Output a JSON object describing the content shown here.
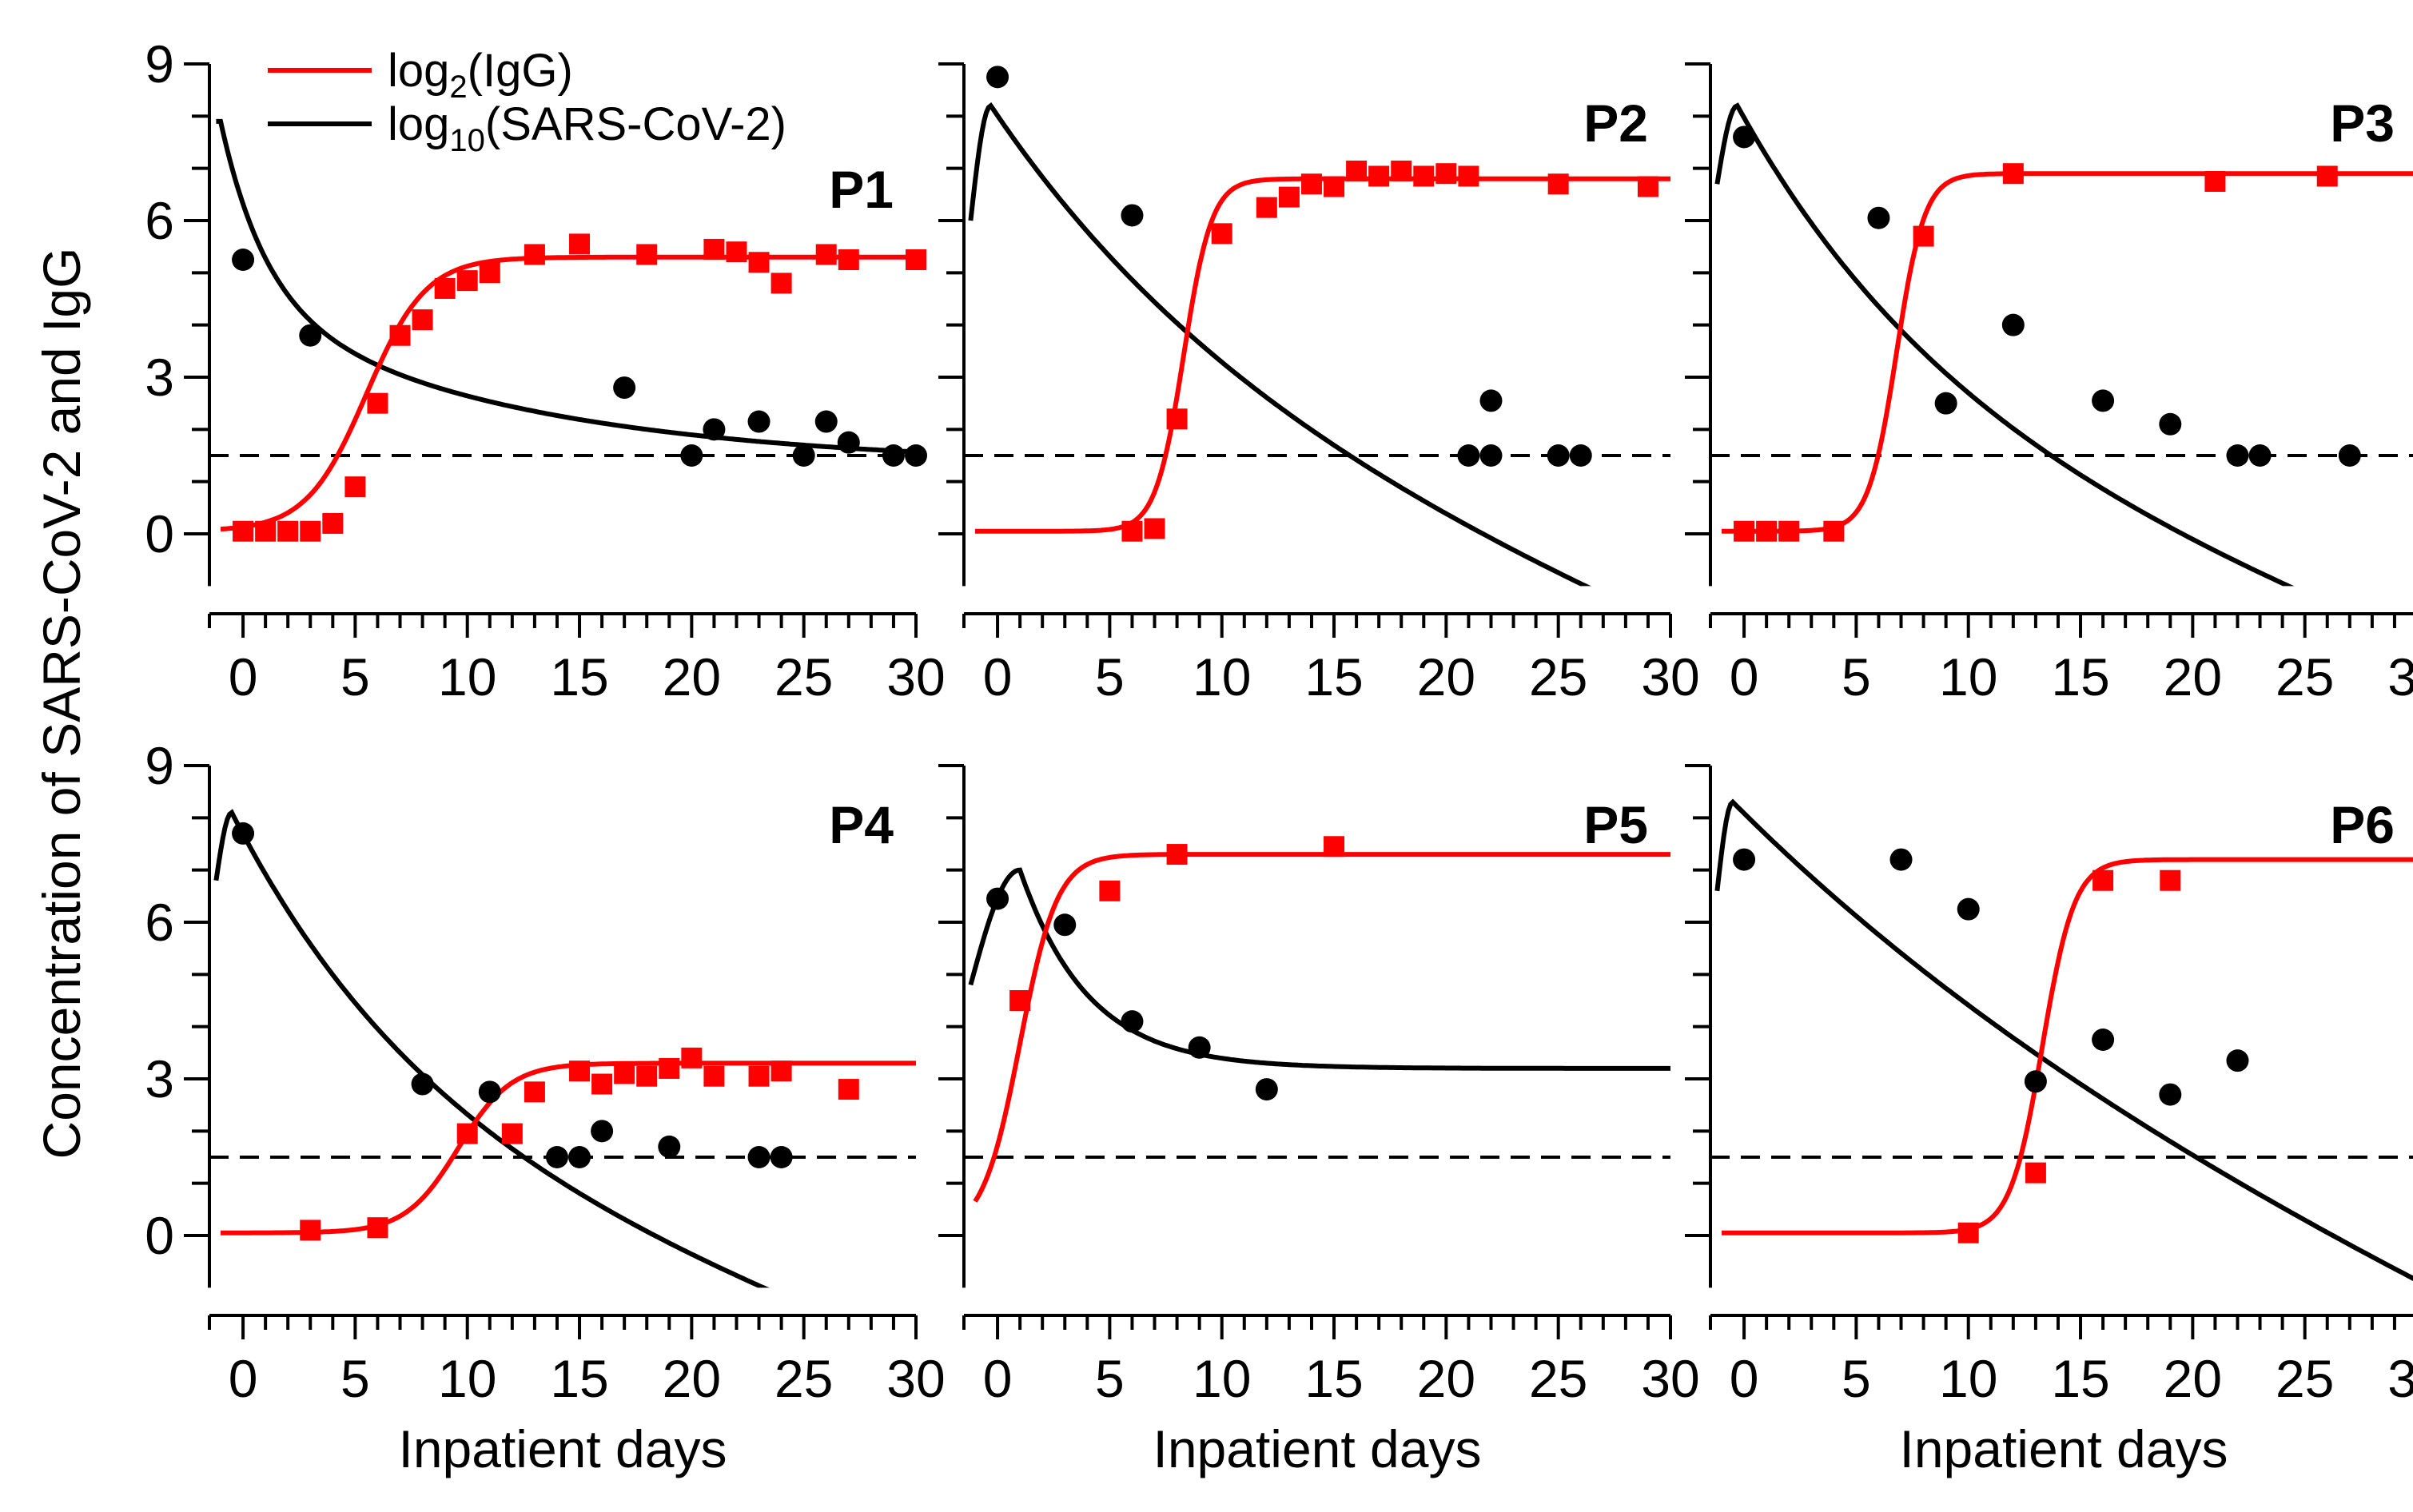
{
  "figure": {
    "ylabel": "Concentration of SARS-CoV-2 and IgG",
    "xlabel": "Inpatient days",
    "legend": [
      {
        "label_base": "log",
        "label_sub": "2",
        "label_rest": "(IgG)",
        "color": "#ff0000"
      },
      {
        "label_base": "log",
        "label_sub": "10",
        "label_rest": "(SARS-CoV-2)",
        "color": "#000000"
      }
    ]
  },
  "chart_data": {
    "type": "line",
    "x_ticks": [
      0,
      5,
      10,
      15,
      20,
      25,
      30
    ],
    "y_ticks": [
      0,
      3,
      6,
      9
    ],
    "xlim": [
      -1,
      30
    ],
    "ylim": [
      -1,
      9
    ],
    "threshold": 1.5,
    "colors": {
      "igg": "#ff0000",
      "virus": "#000000"
    },
    "panels": [
      {
        "label": "P1",
        "virus_model": {
          "peak_day": -1,
          "peak": 7.9,
          "decay": [
            3.4,
            0.5,
            3.2,
            0.08
          ],
          "rise_start": 7.9,
          "end": 1.3
        },
        "igg_model": {
          "base": 0.05,
          "max": 5.3,
          "mid": 5.5,
          "k": 0.75
        },
        "virus_points": [
          [
            0,
            5.25
          ],
          [
            3,
            3.8
          ],
          [
            17,
            2.8
          ],
          [
            20,
            1.5
          ],
          [
            21,
            2.0
          ],
          [
            23,
            2.15
          ],
          [
            25,
            1.5
          ],
          [
            26,
            2.15
          ],
          [
            27,
            1.75
          ],
          [
            29,
            1.5
          ],
          [
            30,
            1.5
          ]
        ],
        "igg_points": [
          [
            0,
            0.05
          ],
          [
            1,
            0.05
          ],
          [
            2,
            0.05
          ],
          [
            3,
            0.05
          ],
          [
            4,
            0.2
          ],
          [
            5,
            0.9
          ],
          [
            6,
            2.5
          ],
          [
            7,
            3.8
          ],
          [
            8,
            4.1
          ],
          [
            9,
            4.7
          ],
          [
            10,
            4.85
          ],
          [
            11,
            5.0
          ],
          [
            13,
            5.35
          ],
          [
            15,
            5.55
          ],
          [
            18,
            5.35
          ],
          [
            21,
            5.45
          ],
          [
            22,
            5.4
          ],
          [
            23,
            5.2
          ],
          [
            24,
            4.8
          ],
          [
            26,
            5.35
          ],
          [
            27,
            5.25
          ],
          [
            30,
            5.25
          ]
        ]
      },
      {
        "label": "P2",
        "virus_model": {
          "peak_day": -0.3,
          "peak": 8.2,
          "rise_start": 6.0,
          "exp_end_rate": 0.078
        },
        "igg_model": {
          "base": 0.05,
          "max": 6.8,
          "mid": 8.3,
          "k": 1.6
        },
        "virus_points": [
          [
            0,
            8.75
          ],
          [
            6,
            6.1
          ],
          [
            21,
            1.5
          ],
          [
            22,
            1.5
          ],
          [
            22,
            2.55
          ],
          [
            25,
            1.5
          ],
          [
            26,
            1.5
          ]
        ],
        "igg_points": [
          [
            6,
            0.05
          ],
          [
            7,
            0.1
          ],
          [
            8,
            2.2
          ],
          [
            10,
            5.75
          ],
          [
            12,
            6.25
          ],
          [
            13,
            6.45
          ],
          [
            14,
            6.7
          ],
          [
            15,
            6.65
          ],
          [
            16,
            6.95
          ],
          [
            17,
            6.85
          ],
          [
            18,
            6.95
          ],
          [
            19,
            6.85
          ],
          [
            20,
            6.9
          ],
          [
            21,
            6.85
          ],
          [
            25,
            6.7
          ],
          [
            29,
            6.65
          ]
        ]
      },
      {
        "label": "P3",
        "virus_model": {
          "peak_day": -0.3,
          "peak": 8.2,
          "rise_start": 6.7,
          "exp_end_rate": 0.095
        },
        "igg_model": {
          "base": 0.05,
          "max": 6.9,
          "mid": 6.8,
          "k": 1.6
        },
        "virus_points": [
          [
            0,
            7.6
          ],
          [
            6,
            6.05
          ],
          [
            9,
            2.5
          ],
          [
            12,
            4.0
          ],
          [
            16,
            2.55
          ],
          [
            19,
            2.1
          ],
          [
            22,
            1.5
          ],
          [
            23,
            1.5
          ],
          [
            27,
            1.5
          ]
        ],
        "igg_points": [
          [
            0,
            0.05
          ],
          [
            1,
            0.05
          ],
          [
            2,
            0.05
          ],
          [
            4,
            0.05
          ],
          [
            8,
            5.7
          ],
          [
            12,
            6.9
          ],
          [
            21,
            6.75
          ],
          [
            26,
            6.85
          ]
        ]
      },
      {
        "label": "P4",
        "virus_model": {
          "peak_day": -0.5,
          "peak": 8.1,
          "rise_start": 6.8,
          "exp_end_rate": 0.104
        },
        "igg_model": {
          "base": 0.05,
          "max": 3.3,
          "mid": 9.6,
          "k": 0.85
        },
        "virus_points": [
          [
            0,
            7.7
          ],
          [
            8,
            2.9
          ],
          [
            11,
            2.75
          ],
          [
            14,
            1.5
          ],
          [
            15,
            1.5
          ],
          [
            16,
            2.0
          ],
          [
            19,
            1.7
          ],
          [
            23,
            1.5
          ],
          [
            24,
            1.5
          ]
        ],
        "igg_points": [
          [
            3,
            0.1
          ],
          [
            6,
            0.15
          ],
          [
            10,
            1.95
          ],
          [
            12,
            1.95
          ],
          [
            13,
            2.75
          ],
          [
            15,
            3.15
          ],
          [
            16,
            2.9
          ],
          [
            17,
            3.1
          ],
          [
            18,
            3.05
          ],
          [
            19,
            3.2
          ],
          [
            20,
            3.4
          ],
          [
            21,
            3.05
          ],
          [
            23,
            3.05
          ],
          [
            24,
            3.15
          ],
          [
            27,
            2.8
          ]
        ]
      },
      {
        "label": "P5",
        "virus_model": {
          "peak_day": 1.0,
          "peak": 7.0,
          "rise_start": 4.8,
          "end": 3.2,
          "decay_rate": 0.33
        },
        "igg_model": {
          "base": 0.05,
          "max": 7.3,
          "mid": 1.0,
          "k": 1.2
        },
        "virus_points": [
          [
            0,
            6.45
          ],
          [
            3,
            5.95
          ],
          [
            6,
            4.1
          ],
          [
            9,
            3.6
          ],
          [
            12,
            2.8
          ]
        ],
        "igg_points": [
          [
            1,
            4.5
          ],
          [
            5,
            6.6
          ],
          [
            8,
            7.3
          ],
          [
            15,
            7.45
          ]
        ]
      },
      {
        "label": "P6",
        "virus_model": {
          "peak_day": -0.5,
          "peak": 8.3,
          "rise_start": 6.6,
          "exp_end_rate": 0.052
        },
        "igg_model": {
          "base": 0.05,
          "max": 7.2,
          "mid": 13.3,
          "k": 1.4
        },
        "virus_points": [
          [
            0,
            7.2
          ],
          [
            7,
            7.2
          ],
          [
            10,
            6.25
          ],
          [
            13,
            2.95
          ],
          [
            16,
            3.75
          ],
          [
            19,
            2.7
          ],
          [
            22,
            3.35
          ]
        ],
        "igg_points": [
          [
            10,
            0.05
          ],
          [
            13,
            1.2
          ],
          [
            16,
            6.8
          ],
          [
            19,
            6.8
          ]
        ]
      }
    ]
  }
}
